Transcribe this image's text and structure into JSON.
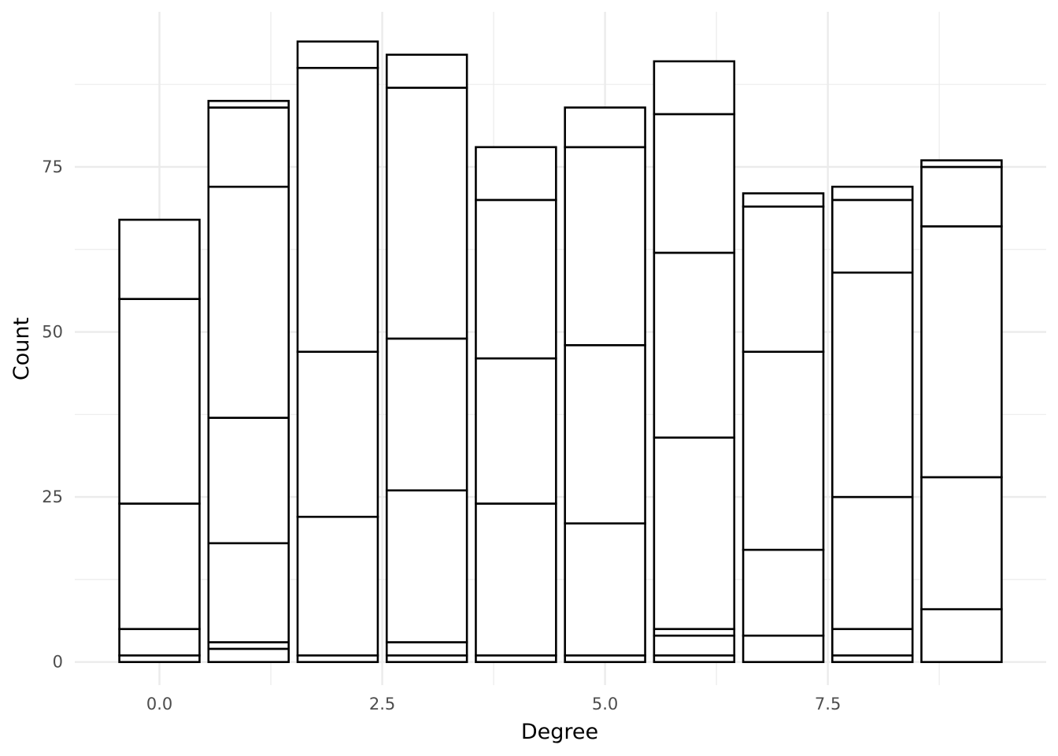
{
  "chart_data": {
    "type": "bar",
    "stacked": true,
    "title": "",
    "xlabel": "Degree",
    "ylabel": "Count",
    "xlim": [
      -0.95,
      9.95
    ],
    "ylim": [
      -3.5,
      98.5
    ],
    "x_ticks": [
      {
        "value": 0,
        "label": "0.0"
      },
      {
        "value": 2.5,
        "label": "2.5"
      },
      {
        "value": 5,
        "label": "5.0"
      },
      {
        "value": 7.5,
        "label": "7.5"
      }
    ],
    "y_ticks": [
      {
        "value": 0,
        "label": "0"
      },
      {
        "value": 25,
        "label": "25"
      },
      {
        "value": 50,
        "label": "50"
      },
      {
        "value": 75,
        "label": "75"
      }
    ],
    "bar_width": 0.9,
    "grid": true,
    "legend": "none",
    "fill_color": "#ffffff",
    "outline_color": "#000000",
    "grid_color": "#ebebeb",
    "bars": [
      {
        "x": 0,
        "boundaries": [
          0,
          1,
          5,
          24,
          55,
          67
        ]
      },
      {
        "x": 1,
        "boundaries": [
          0,
          2,
          3,
          18,
          37,
          72,
          84,
          85
        ]
      },
      {
        "x": 2,
        "boundaries": [
          0,
          1,
          22,
          47,
          90,
          94
        ]
      },
      {
        "x": 3,
        "boundaries": [
          0,
          1,
          3,
          26,
          49,
          87,
          92
        ]
      },
      {
        "x": 4,
        "boundaries": [
          0,
          1,
          24,
          46,
          70,
          78
        ]
      },
      {
        "x": 5,
        "boundaries": [
          0,
          1,
          21,
          48,
          78,
          84
        ]
      },
      {
        "x": 6,
        "boundaries": [
          0,
          1,
          4,
          5,
          34,
          62,
          83,
          91
        ]
      },
      {
        "x": 7,
        "boundaries": [
          0,
          4,
          17,
          47,
          69,
          71
        ]
      },
      {
        "x": 8,
        "boundaries": [
          0,
          1,
          5,
          25,
          59,
          70,
          72
        ]
      },
      {
        "x": 9,
        "boundaries": [
          0,
          8,
          28,
          66,
          75,
          76
        ]
      }
    ]
  }
}
